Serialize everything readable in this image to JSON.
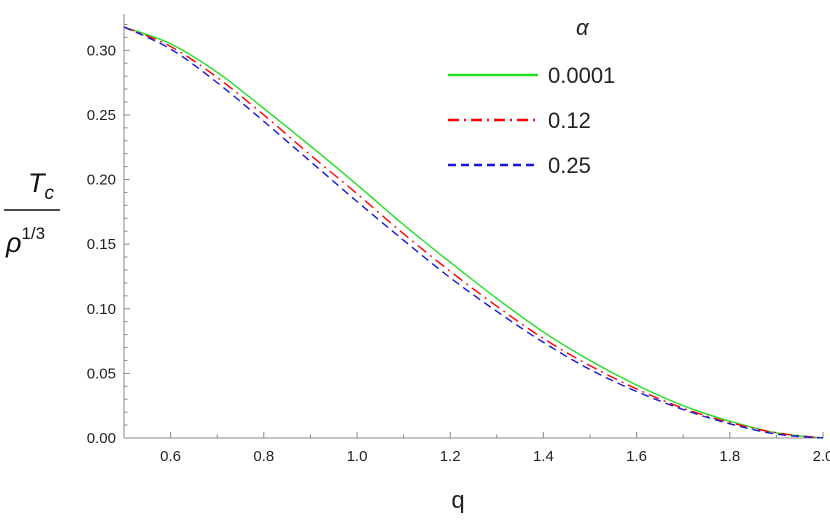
{
  "chart_data": {
    "type": "line",
    "title": "",
    "xlabel": "q",
    "ylabel": {
      "numerator": "T",
      "numerator_sub": "c",
      "denominator": "ρ",
      "denominator_sup": "1/3"
    },
    "xlim": [
      0.5,
      2.0
    ],
    "ylim": [
      0.0,
      0.325
    ],
    "x_ticks": [
      0.6,
      0.8,
      1.0,
      1.2,
      1.4,
      1.6,
      1.8,
      2.0
    ],
    "x_tick_labels": [
      "0.6",
      "0.8",
      "1.0",
      "1.2",
      "1.4",
      "1.6",
      "1.8",
      "2.0"
    ],
    "y_ticks": [
      0.0,
      0.05,
      0.1,
      0.15,
      0.2,
      0.25,
      0.3
    ],
    "y_tick_labels": [
      "0.00",
      "0.05",
      "0.10",
      "0.15",
      "0.20",
      "0.25",
      "0.30"
    ],
    "grid": false,
    "legend": {
      "title": "α",
      "placement": "top-right"
    },
    "x": [
      0.5,
      0.6,
      0.7,
      0.8,
      0.9,
      1.0,
      1.1,
      1.2,
      1.3,
      1.4,
      1.5,
      1.6,
      1.7,
      1.8,
      1.9,
      2.0
    ],
    "series": [
      {
        "name": "0.0001",
        "color": "#22dd22",
        "dash": "solid",
        "values": [
          0.318,
          0.305,
          0.283,
          0.255,
          0.226,
          0.196,
          0.165,
          0.136,
          0.108,
          0.082,
          0.06,
          0.041,
          0.025,
          0.013,
          0.004,
          0.0
        ]
      },
      {
        "name": "0.12",
        "color": "#ff0000",
        "dash": "dashdot",
        "values": [
          0.318,
          0.303,
          0.279,
          0.25,
          0.219,
          0.189,
          0.158,
          0.129,
          0.102,
          0.077,
          0.056,
          0.038,
          0.023,
          0.012,
          0.004,
          0.0
        ]
      },
      {
        "name": "0.25",
        "color": "#1515dd",
        "dash": "dashed",
        "values": [
          0.318,
          0.301,
          0.275,
          0.245,
          0.214,
          0.183,
          0.153,
          0.124,
          0.098,
          0.074,
          0.053,
          0.036,
          0.022,
          0.011,
          0.003,
          0.0
        ]
      }
    ]
  }
}
